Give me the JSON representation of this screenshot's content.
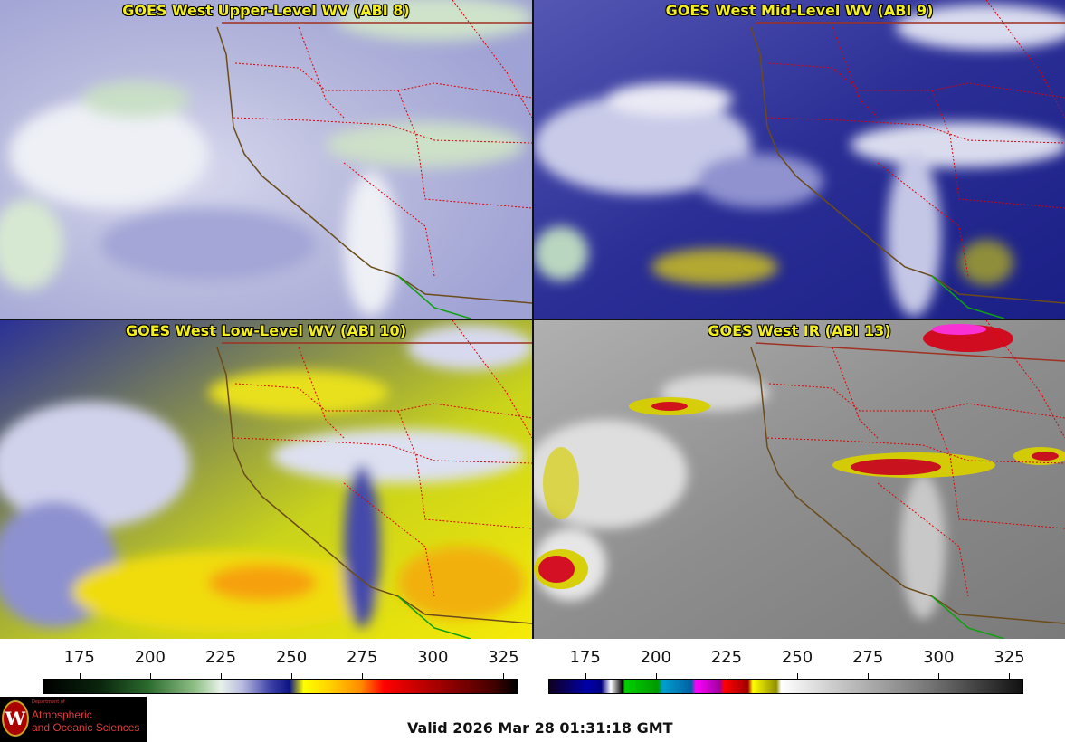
{
  "panels": [
    {
      "title": "GOES West Upper-Level WV (ABI 8)",
      "colormap": "wv"
    },
    {
      "title": "GOES West Mid-Level WV (ABI 9)",
      "colormap": "wv"
    },
    {
      "title": "GOES West Low-Level WV (ABI 10)",
      "colormap": "wv"
    },
    {
      "title": "GOES West IR (ABI 13)",
      "colormap": "ir"
    }
  ],
  "colorbars": [
    {
      "ticks": [
        "175",
        "200",
        "225",
        "250",
        "275",
        "300",
        "325"
      ],
      "min": 162,
      "max": 330
    },
    {
      "ticks": [
        "175",
        "200",
        "225",
        "250",
        "275",
        "300",
        "325"
      ],
      "min": 162,
      "max": 330
    }
  ],
  "logo": {
    "dept": "Department of",
    "line1": "Atmospheric",
    "line2": "and Oceanic Sciences",
    "seal": "W"
  },
  "valid_time": "Valid 2026 Mar 28 01:31:18 GMT",
  "colors": {
    "title_yellow": "#f4ef1a",
    "border_red": "#e00000",
    "coast": "#6b4b1a"
  }
}
